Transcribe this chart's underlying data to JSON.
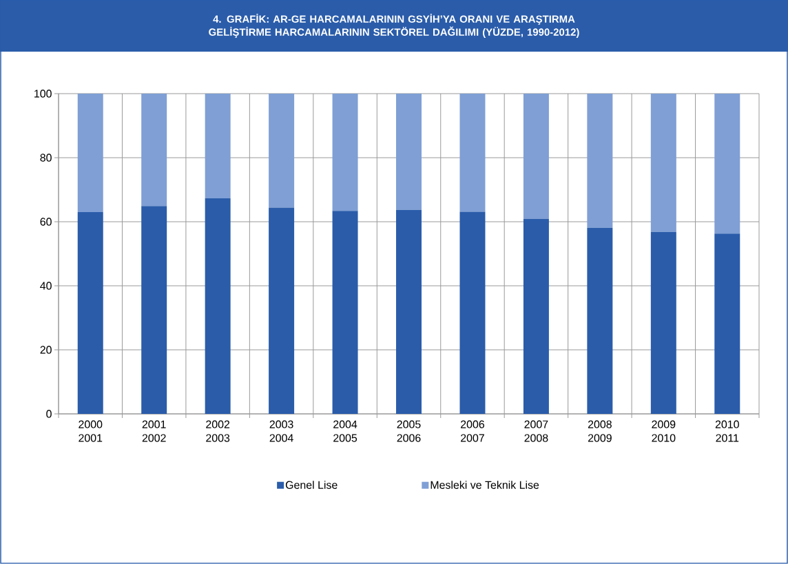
{
  "chart_data": {
    "type": "bar",
    "stacked": true,
    "title": "4. GRAFİK: AR-GE HARCAMALARININ GSYİH’YA ORANI VE ARAŞTIRMA GELİŞTİRME HARCAMALARININ SEKTÖREL DAĞILIMI (YÜZDE, 1990-2012)",
    "categories": [
      "2000 2001",
      "2001 2002",
      "2002 2003",
      "2003 2004",
      "2004 2005",
      "2005 2006",
      "2006 2007",
      "2007 2008",
      "2008 2009",
      "2009 2010",
      "2010 2011"
    ],
    "series": [
      {
        "name": "Genel Lise",
        "color": "#2a5caa",
        "values": [
          63.0,
          64.9,
          67.3,
          64.4,
          63.4,
          63.7,
          63.1,
          60.9,
          58.1,
          56.8,
          56.3
        ]
      },
      {
        "name": "Mesleki ve Teknik Lise",
        "color": "#7f9fd5",
        "values": [
          37.0,
          35.1,
          32.7,
          35.6,
          36.6,
          36.3,
          36.9,
          39.1,
          41.9,
          43.2,
          43.7
        ]
      }
    ],
    "ylim": [
      0,
      100
    ],
    "yticks": [
      0,
      20,
      40,
      60,
      80,
      100
    ],
    "grid": true,
    "legend": "bottom"
  }
}
